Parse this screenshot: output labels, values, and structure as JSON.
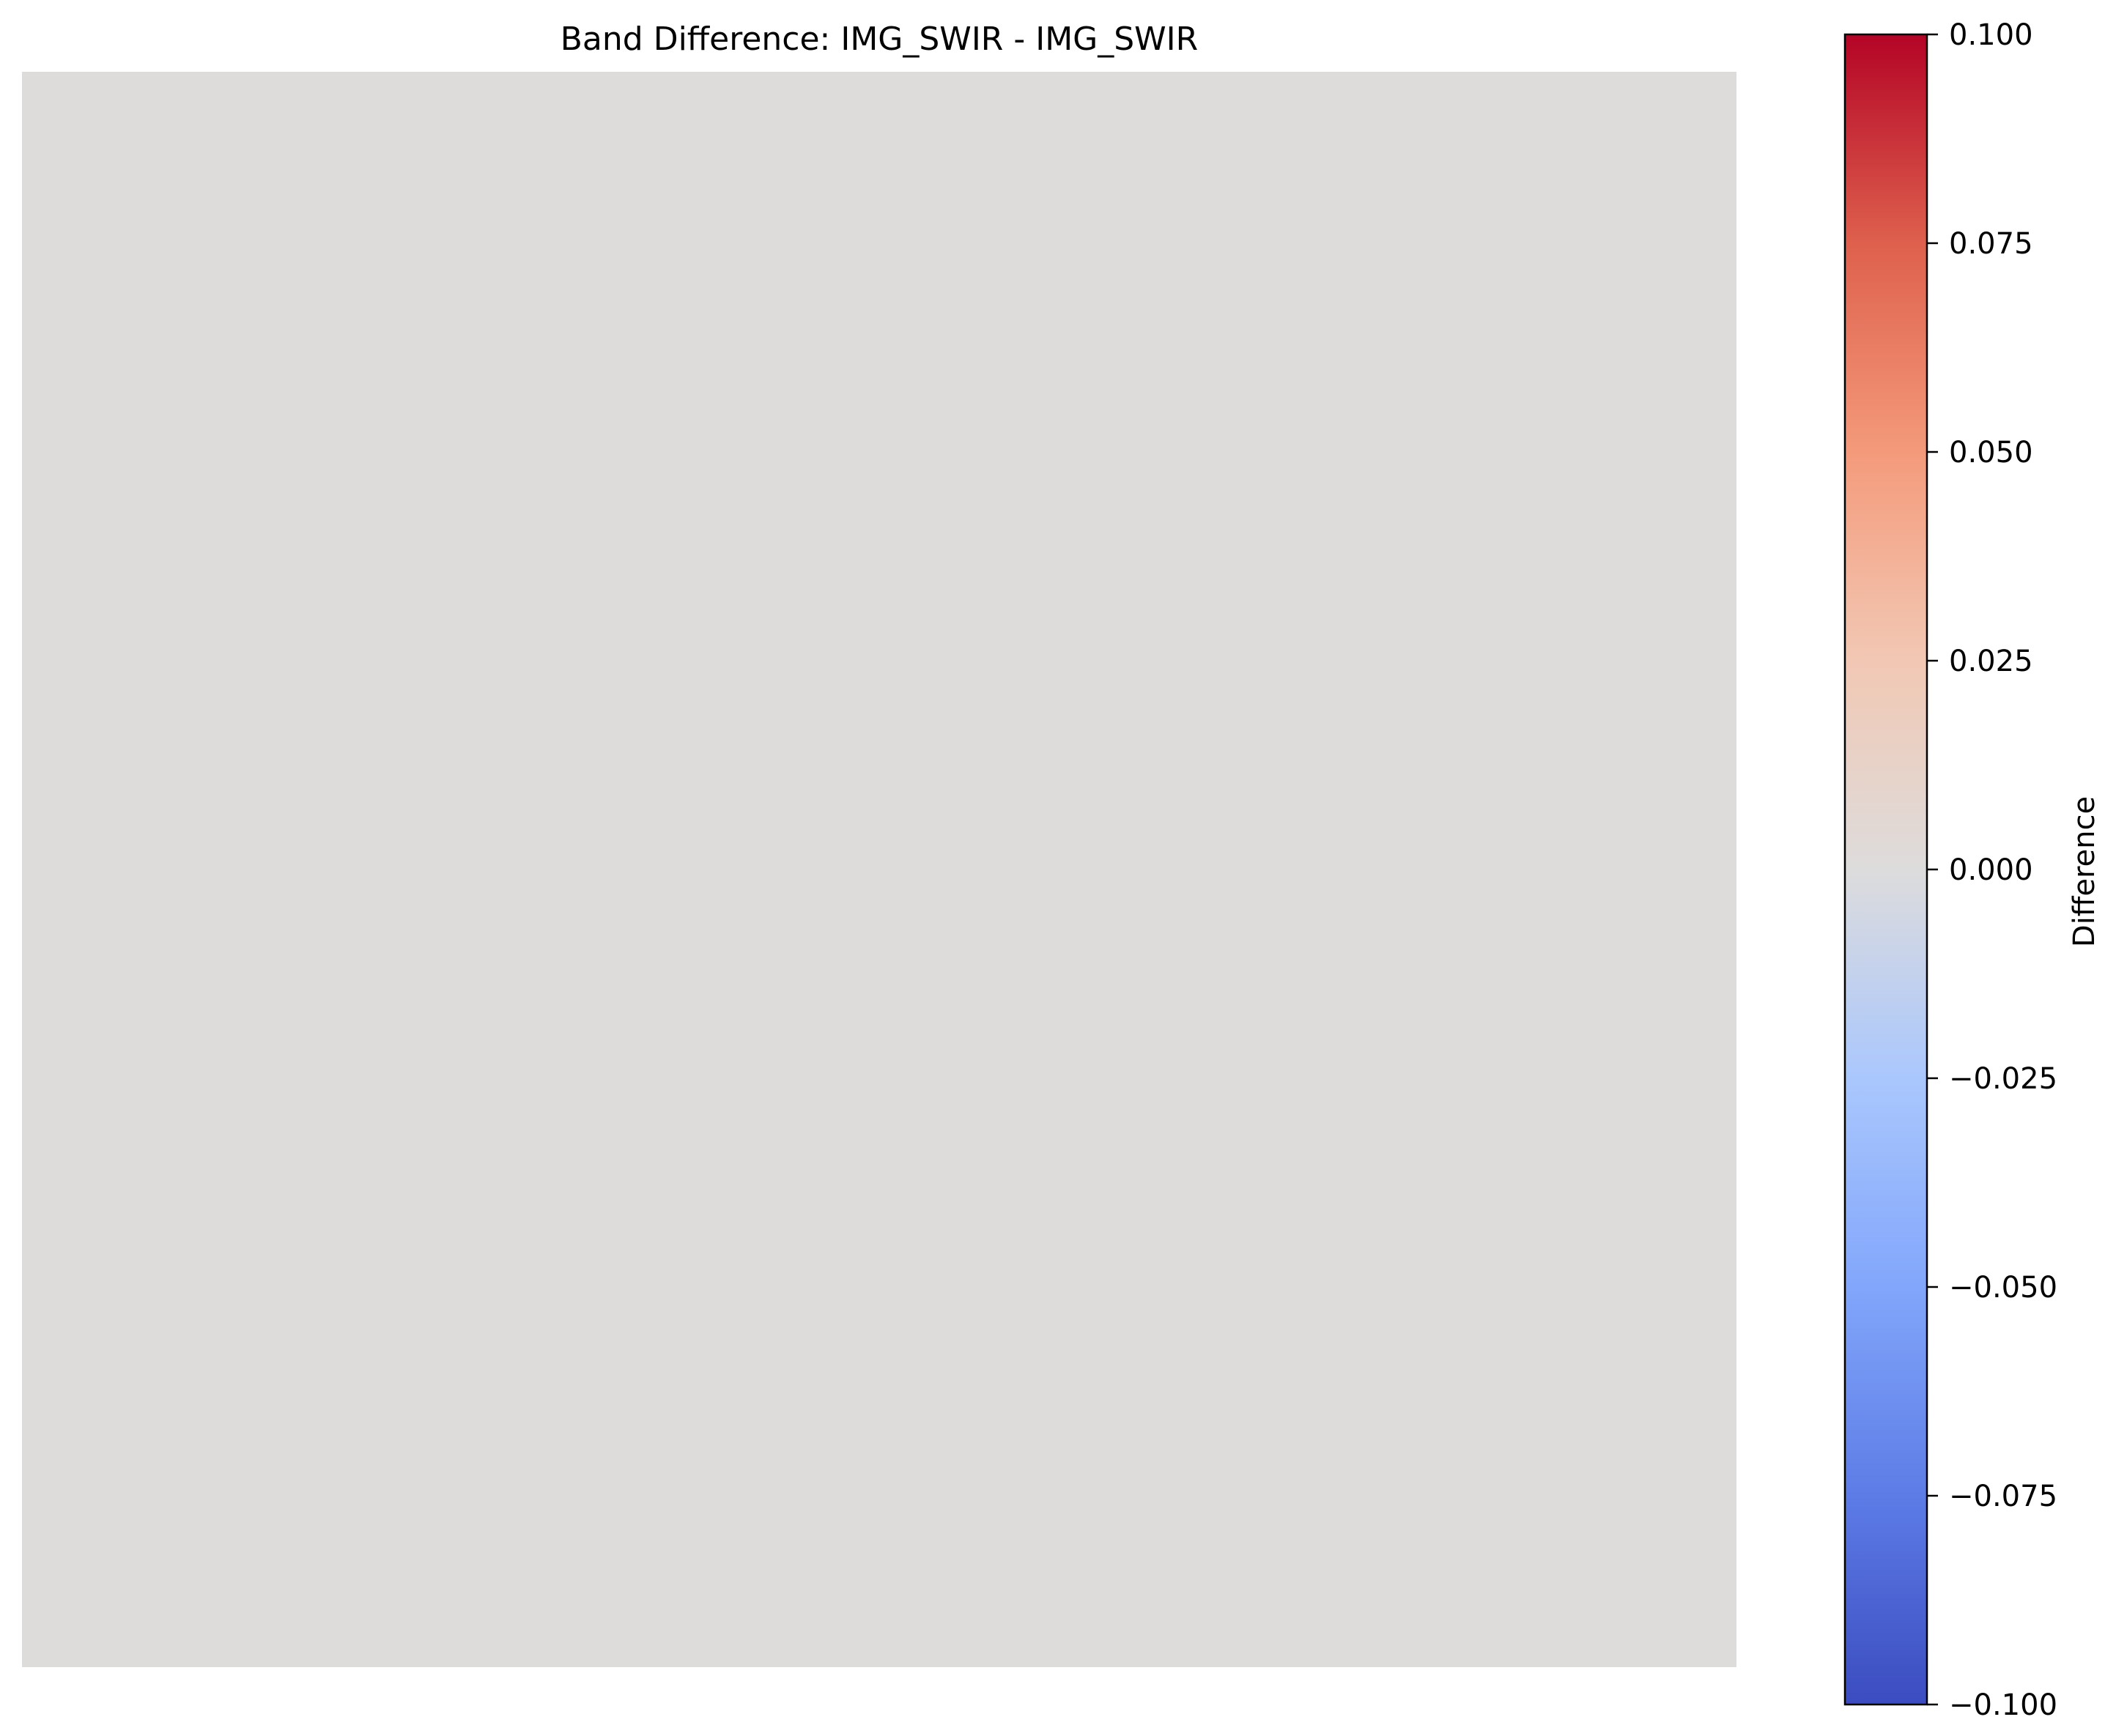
{
  "chart_data": {
    "type": "heatmap",
    "title": "Band Difference: IMG_SWIR - IMG_SWIR",
    "image": {
      "value": 0.0,
      "uniform": true,
      "color": "#dddcdb"
    },
    "axes_visible": false,
    "colorbar": {
      "label": "Difference",
      "colormap": "coolwarm",
      "vmin": -0.1,
      "vmax": 0.1,
      "ticks": [
        {
          "value": 0.1,
          "label": "0.100"
        },
        {
          "value": 0.075,
          "label": "0.075"
        },
        {
          "value": 0.05,
          "label": "0.050"
        },
        {
          "value": 0.025,
          "label": "0.025"
        },
        {
          "value": 0.0,
          "label": "0.000"
        },
        {
          "value": -0.025,
          "label": "−0.025"
        },
        {
          "value": -0.05,
          "label": "−0.050"
        },
        {
          "value": -0.075,
          "label": "−0.075"
        },
        {
          "value": -0.1,
          "label": "−0.100"
        }
      ],
      "colors": [
        {
          "value": -0.1,
          "color": "#3b4cc0"
        },
        {
          "value": -0.075,
          "color": "#5d7ce6"
        },
        {
          "value": -0.05,
          "color": "#82a6fb"
        },
        {
          "value": -0.025,
          "color": "#aac7fd"
        },
        {
          "value": 0.0,
          "color": "#dddcdc"
        },
        {
          "value": 0.025,
          "color": "#f2c8b4"
        },
        {
          "value": 0.05,
          "color": "#f49a7b"
        },
        {
          "value": 0.075,
          "color": "#de604d"
        },
        {
          "value": 0.1,
          "color": "#b40426"
        }
      ]
    }
  }
}
